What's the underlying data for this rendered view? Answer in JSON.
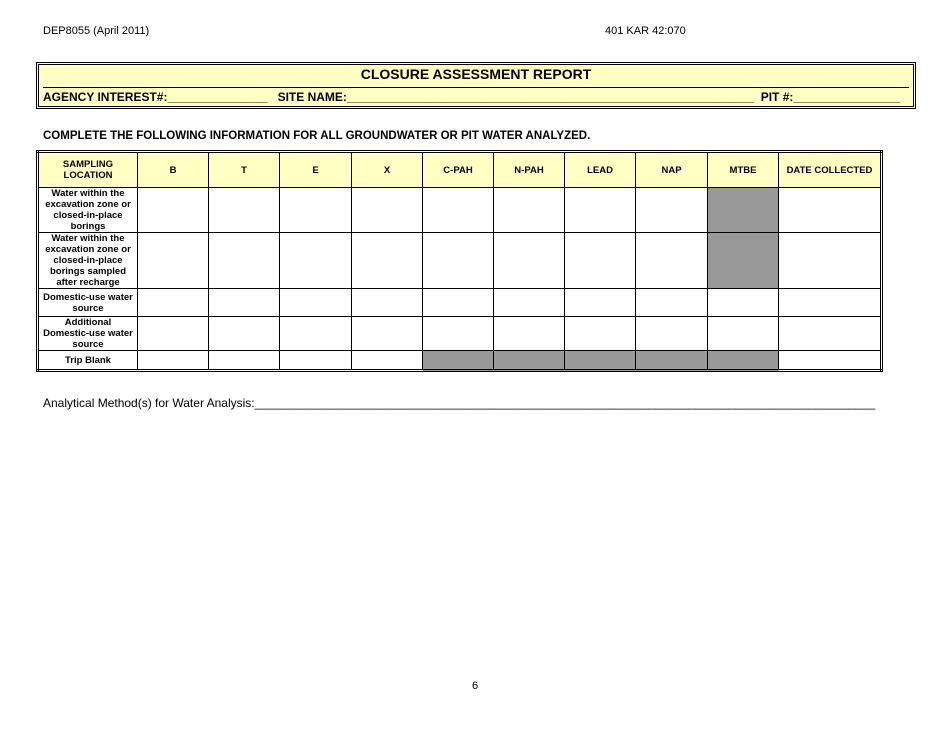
{
  "header": {
    "form_id": "DEP8055 (April 2011)",
    "regulation": "401 KAR 42:070"
  },
  "report": {
    "title": "CLOSURE ASSESSMENT REPORT",
    "agency_label": "AGENCY INTEREST#:",
    "agency_blank": "_______________",
    "site_label": "SITE NAME:",
    "site_blank": "_____________________________________________________________",
    "pit_label": "PIT #:",
    "pit_blank": "________________"
  },
  "instructions": "COMPLETE THE FOLLOWING INFORMATION FOR ALL GROUNDWATER OR PIT WATER ANALYZED.",
  "table": {
    "columns": [
      "SAMPLING LOCATION",
      "B",
      "T",
      "E",
      "X",
      "C-PAH",
      "N-PAH",
      "LEAD",
      "NAP",
      "MTBE",
      "DATE COLLECTED"
    ],
    "rows": [
      {
        "label": "Water within the excavation zone or closed-in-place borings",
        "shaded": [
          9
        ]
      },
      {
        "label": "Water within the excavation zone or closed-in-place borings sampled after recharge",
        "shaded": [
          9
        ]
      },
      {
        "label": "Domestic-use water source",
        "shaded": []
      },
      {
        "label": "Additional Domestic-use water source",
        "shaded": []
      },
      {
        "label": "Trip Blank",
        "shaded": [
          5,
          6,
          7,
          8,
          9
        ]
      }
    ],
    "shade_color": "#999999",
    "header_color": "#ffffc4"
  },
  "method": {
    "label": "Analytical Method(s) for Water Analysis:",
    "blank": "_____________________________________________________________________________________________"
  },
  "page_number": "6"
}
